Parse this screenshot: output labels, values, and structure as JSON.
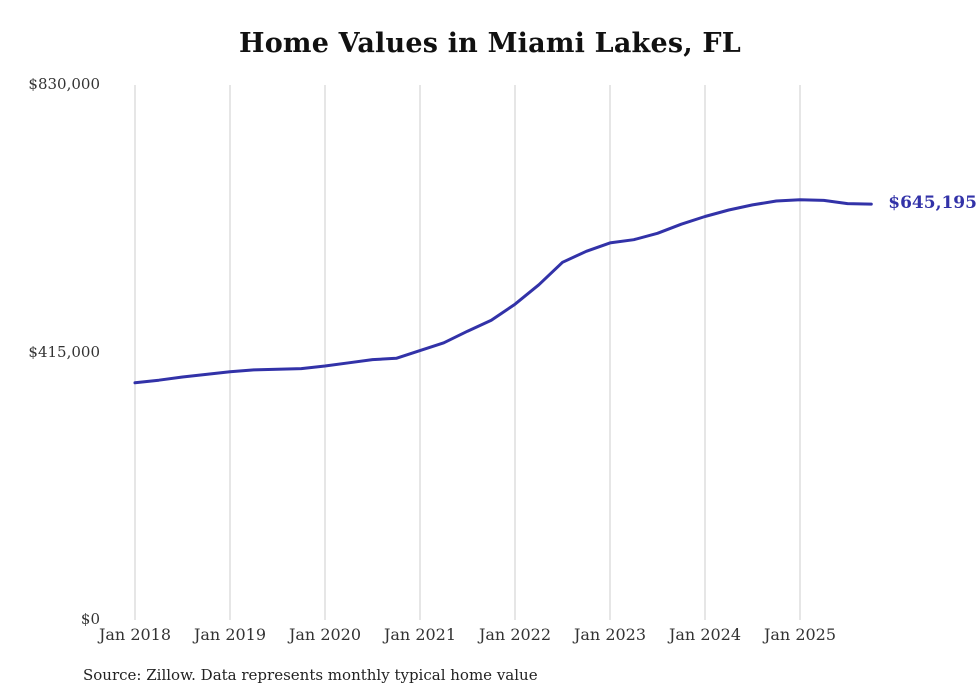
{
  "chart_data": {
    "type": "line",
    "title": "Home Values in Miami Lakes, FL",
    "xlabel": "",
    "ylabel": "",
    "ylim": [
      0,
      830000
    ],
    "grid": "vertical-only",
    "legend": "none",
    "line_color": "#3232a8",
    "grid_color": "#cccccc",
    "end_label": "$645,195",
    "end_value": 645195,
    "source": "Source: Zillow. Data represents monthly typical home value",
    "y_ticks": [
      {
        "label": "$0",
        "value": 0
      },
      {
        "label": "$415,000",
        "value": 415000
      },
      {
        "label": "$830,000",
        "value": 830000
      }
    ],
    "x_ticks": [
      {
        "label": "Jan 2018",
        "month": 0
      },
      {
        "label": "Jan 2019",
        "month": 12
      },
      {
        "label": "Jan 2020",
        "month": 24
      },
      {
        "label": "Jan 2021",
        "month": 36
      },
      {
        "label": "Jan 2022",
        "month": 48
      },
      {
        "label": "Jan 2023",
        "month": 60
      },
      {
        "label": "Jan 2024",
        "month": 72
      },
      {
        "label": "Jan 2025",
        "month": 84
      }
    ],
    "series": [
      {
        "name": "Typical home value",
        "points": [
          [
            "2018-01",
            368000
          ],
          [
            "2018-04",
            372000
          ],
          [
            "2018-07",
            377000
          ],
          [
            "2018-10",
            381000
          ],
          [
            "2019-01",
            385000
          ],
          [
            "2019-04",
            388000
          ],
          [
            "2019-07",
            389000
          ],
          [
            "2019-10",
            390000
          ],
          [
            "2020-01",
            394000
          ],
          [
            "2020-04",
            399000
          ],
          [
            "2020-07",
            404000
          ],
          [
            "2020-10",
            406000
          ],
          [
            "2021-01",
            418000
          ],
          [
            "2021-04",
            430000
          ],
          [
            "2021-07",
            448000
          ],
          [
            "2021-10",
            465000
          ],
          [
            "2022-01",
            490000
          ],
          [
            "2022-04",
            520000
          ],
          [
            "2022-07",
            555000
          ],
          [
            "2022-10",
            572000
          ],
          [
            "2023-01",
            585000
          ],
          [
            "2023-04",
            590000
          ],
          [
            "2023-07",
            600000
          ],
          [
            "2023-10",
            614000
          ],
          [
            "2024-01",
            626000
          ],
          [
            "2024-04",
            636000
          ],
          [
            "2024-07",
            644000
          ],
          [
            "2024-10",
            650000
          ],
          [
            "2025-01",
            652000
          ],
          [
            "2025-04",
            651000
          ],
          [
            "2025-07",
            646000
          ],
          [
            "2025-10",
            645195
          ]
        ]
      }
    ]
  }
}
